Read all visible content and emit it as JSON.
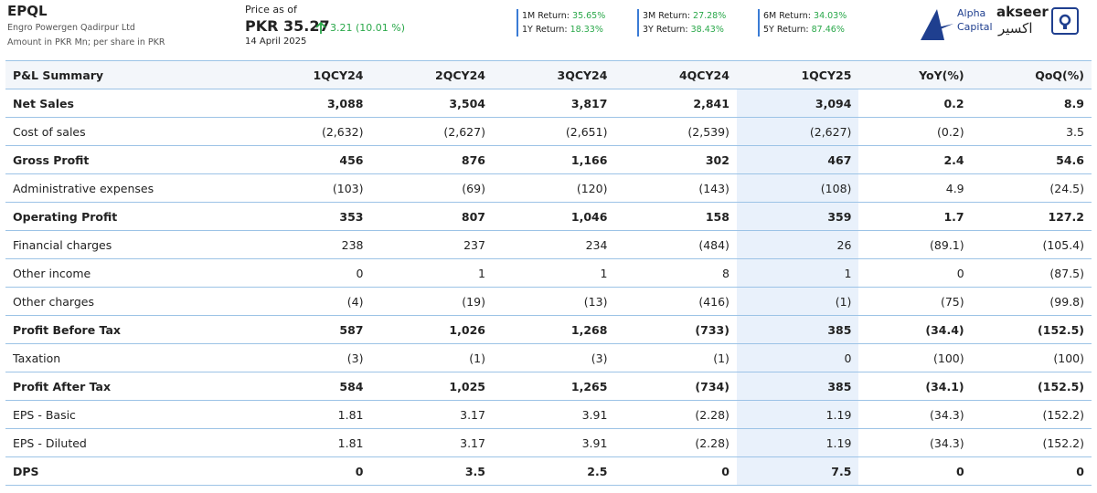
{
  "header": {
    "ticker": "EPQL",
    "company": "Engro Powergen Qadirpur Ltd",
    "note": "Amount in PKR Mn; per share in PKR"
  },
  "price": {
    "label": "Price as of",
    "value": "PKR 35.27",
    "change": "3.21 (10.01 %)",
    "date": "14 April 2025"
  },
  "returns": [
    [
      {
        "label": "1M Return:",
        "value": "35.65%"
      },
      {
        "label": "1Y Return:",
        "value": "18.33%"
      }
    ],
    [
      {
        "label": "3M Return:",
        "value": "27.28%"
      },
      {
        "label": "3Y Return:",
        "value": "38.43%"
      }
    ],
    [
      {
        "label": "6M Return:",
        "value": "34.03%"
      },
      {
        "label": "5Y Return:",
        "value": "87.46%"
      }
    ]
  ],
  "logo": {
    "alpha": "Alpha",
    "capital": "Capital",
    "akseer": "akseer",
    "akseer_ar": "اکسیر"
  },
  "table": {
    "columns": [
      "P&L Summary",
      "1QCY24",
      "2QCY24",
      "3QCY24",
      "4QCY24",
      "1QCY25",
      "YoY(%)",
      "QoQ(%)"
    ],
    "highlight_column": 5,
    "rows": [
      {
        "label": "Net Sales",
        "bold": true,
        "values": [
          "3,088",
          "3,504",
          "3,817",
          "2,841",
          "3,094",
          "0.2",
          "8.9"
        ]
      },
      {
        "label": "Cost of sales",
        "bold": false,
        "values": [
          "(2,632)",
          "(2,627)",
          "(2,651)",
          "(2,539)",
          "(2,627)",
          "(0.2)",
          "3.5"
        ]
      },
      {
        "label": "Gross Profit",
        "bold": true,
        "values": [
          "456",
          "876",
          "1,166",
          "302",
          "467",
          "2.4",
          "54.6"
        ]
      },
      {
        "label": "Administrative expenses",
        "bold": false,
        "values": [
          "(103)",
          "(69)",
          "(120)",
          "(143)",
          "(108)",
          "4.9",
          "(24.5)"
        ]
      },
      {
        "label": "Operating Profit",
        "bold": true,
        "values": [
          "353",
          "807",
          "1,046",
          "158",
          "359",
          "1.7",
          "127.2"
        ]
      },
      {
        "label": "Financial charges",
        "bold": false,
        "values": [
          "238",
          "237",
          "234",
          "(484)",
          "26",
          "(89.1)",
          "(105.4)"
        ]
      },
      {
        "label": "Other income",
        "bold": false,
        "values": [
          "0",
          "1",
          "1",
          "8",
          "1",
          "0",
          "(87.5)"
        ]
      },
      {
        "label": "Other charges",
        "bold": false,
        "values": [
          "(4)",
          "(19)",
          "(13)",
          "(416)",
          "(1)",
          "(75)",
          "(99.8)"
        ]
      },
      {
        "label": "Profit Before Tax",
        "bold": true,
        "values": [
          "587",
          "1,026",
          "1,268",
          "(733)",
          "385",
          "(34.4)",
          "(152.5)"
        ]
      },
      {
        "label": "Taxation",
        "bold": false,
        "values": [
          "(3)",
          "(1)",
          "(3)",
          "(1)",
          "0",
          "(100)",
          "(100)"
        ]
      },
      {
        "label": "Profit After Tax",
        "bold": true,
        "values": [
          "584",
          "1,025",
          "1,265",
          "(734)",
          "385",
          "(34.1)",
          "(152.5)"
        ]
      },
      {
        "label": "EPS - Basic",
        "bold": false,
        "values": [
          "1.81",
          "3.17",
          "3.91",
          "(2.28)",
          "1.19",
          "(34.3)",
          "(152.2)"
        ]
      },
      {
        "label": "EPS - Diluted",
        "bold": false,
        "values": [
          "1.81",
          "3.17",
          "3.91",
          "(2.28)",
          "1.19",
          "(34.3)",
          "(152.2)"
        ]
      },
      {
        "label": "DPS",
        "bold": true,
        "values": [
          "0",
          "3.5",
          "2.5",
          "0",
          "7.5",
          "0",
          "0"
        ]
      }
    ]
  }
}
